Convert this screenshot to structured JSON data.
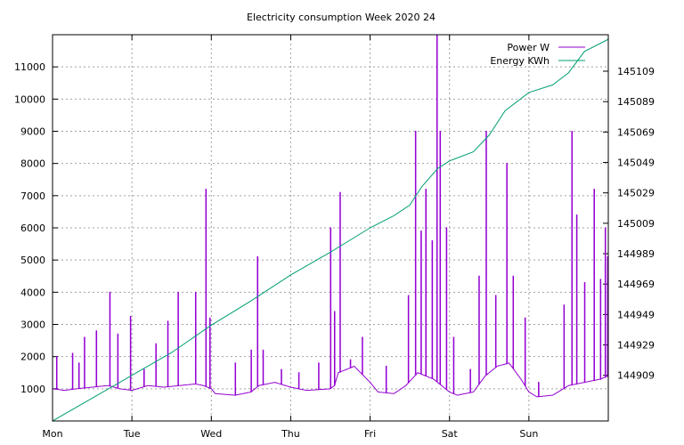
{
  "chart_data": {
    "type": "line",
    "title": "Electricity consumption Week 2020 24",
    "xlabel": "",
    "ylabel": "",
    "x_unit": "day",
    "xlim": [
      0,
      7
    ],
    "x_tick_labels": [
      "Mon",
      "Tue",
      "Wed",
      "Thu",
      "Fri",
      "Sat",
      "Sun"
    ],
    "y_left": {
      "ylim": [
        0,
        12000
      ],
      "ticks": [
        1000,
        2000,
        3000,
        4000,
        5000,
        6000,
        7000,
        8000,
        9000,
        10000,
        11000
      ]
    },
    "y_right": {
      "ylim": [
        144879,
        145133
      ],
      "ticks": [
        144909,
        144929,
        144949,
        144969,
        144989,
        145009,
        145029,
        145049,
        145069,
        145089,
        145109
      ]
    },
    "grid": true,
    "legend_position": "top-right",
    "series": [
      {
        "name": "Power W",
        "axis": "left",
        "color": "#9400d3",
        "base": [
          [
            0,
            1000
          ],
          [
            0.15,
            950
          ],
          [
            0.3,
            1000
          ],
          [
            0.5,
            1050
          ],
          [
            0.7,
            1100
          ],
          [
            0.85,
            1000
          ],
          [
            1.0,
            950
          ],
          [
            1.2,
            1100
          ],
          [
            1.4,
            1050
          ],
          [
            1.6,
            1100
          ],
          [
            1.8,
            1150
          ],
          [
            1.9,
            1100
          ],
          [
            2.0,
            1000
          ],
          [
            2.05,
            850
          ],
          [
            2.3,
            800
          ],
          [
            2.5,
            900
          ],
          [
            2.6,
            1100
          ],
          [
            2.8,
            1200
          ],
          [
            3.0,
            1050
          ],
          [
            3.2,
            950
          ],
          [
            3.5,
            1000
          ],
          [
            3.55,
            1100
          ],
          [
            3.6,
            1500
          ],
          [
            3.8,
            1700
          ],
          [
            4.0,
            1200
          ],
          [
            4.1,
            900
          ],
          [
            4.3,
            850
          ],
          [
            4.45,
            1100
          ],
          [
            4.6,
            1500
          ],
          [
            4.8,
            1300
          ],
          [
            5.0,
            900
          ],
          [
            5.1,
            800
          ],
          [
            5.3,
            900
          ],
          [
            5.45,
            1400
          ],
          [
            5.6,
            1700
          ],
          [
            5.75,
            1800
          ],
          [
            5.9,
            1300
          ],
          [
            6.0,
            900
          ],
          [
            6.1,
            750
          ],
          [
            6.3,
            800
          ],
          [
            6.5,
            1100
          ],
          [
            6.7,
            1200
          ],
          [
            6.9,
            1300
          ],
          [
            7.0,
            1400
          ]
        ],
        "spikes": [
          [
            0.05,
            2000
          ],
          [
            0.25,
            2100
          ],
          [
            0.33,
            1800
          ],
          [
            0.4,
            2600
          ],
          [
            0.55,
            2800
          ],
          [
            0.72,
            4000
          ],
          [
            0.82,
            2700
          ],
          [
            0.98,
            3250
          ],
          [
            1.15,
            1600
          ],
          [
            1.3,
            2400
          ],
          [
            1.45,
            3100
          ],
          [
            1.58,
            4000
          ],
          [
            1.8,
            4000
          ],
          [
            1.93,
            7200
          ],
          [
            1.98,
            3200
          ],
          [
            2.3,
            1800
          ],
          [
            2.5,
            2200
          ],
          [
            2.58,
            5100
          ],
          [
            2.65,
            2200
          ],
          [
            2.88,
            1600
          ],
          [
            3.1,
            1500
          ],
          [
            3.35,
            1800
          ],
          [
            3.5,
            6000
          ],
          [
            3.55,
            3400
          ],
          [
            3.62,
            7100
          ],
          [
            3.75,
            1900
          ],
          [
            3.9,
            2600
          ],
          [
            4.2,
            1700
          ],
          [
            4.48,
            3900
          ],
          [
            4.57,
            9000
          ],
          [
            4.64,
            5900
          ],
          [
            4.7,
            7200
          ],
          [
            4.78,
            5600
          ],
          [
            4.84,
            12000
          ],
          [
            4.88,
            9000
          ],
          [
            4.96,
            6000
          ],
          [
            5.05,
            2600
          ],
          [
            5.26,
            1600
          ],
          [
            5.37,
            4500
          ],
          [
            5.46,
            9000
          ],
          [
            5.58,
            3900
          ],
          [
            5.72,
            8000
          ],
          [
            5.8,
            4500
          ],
          [
            5.95,
            3200
          ],
          [
            6.12,
            1200
          ],
          [
            6.44,
            3600
          ],
          [
            6.54,
            9000
          ],
          [
            6.6,
            6400
          ],
          [
            6.7,
            4300
          ],
          [
            6.82,
            7200
          ],
          [
            6.9,
            4400
          ],
          [
            6.96,
            6000
          ],
          [
            6.99,
            5100
          ]
        ]
      },
      {
        "name": "Energy KWh",
        "axis": "right",
        "color": "#009e73",
        "points": [
          [
            0,
            144879
          ],
          [
            0.5,
            144894
          ],
          [
            1.0,
            144909
          ],
          [
            1.5,
            144924
          ],
          [
            2.0,
            144942
          ],
          [
            2.5,
            144958
          ],
          [
            3.0,
            144975
          ],
          [
            3.5,
            144990
          ],
          [
            4.0,
            145006
          ],
          [
            4.3,
            145014
          ],
          [
            4.5,
            145021
          ],
          [
            4.65,
            145033
          ],
          [
            4.85,
            145045
          ],
          [
            5.0,
            145050
          ],
          [
            5.3,
            145056
          ],
          [
            5.5,
            145067
          ],
          [
            5.7,
            145083
          ],
          [
            6.0,
            145095
          ],
          [
            6.3,
            145100
          ],
          [
            6.5,
            145108
          ],
          [
            6.7,
            145122
          ],
          [
            7.0,
            145130
          ]
        ]
      }
    ]
  }
}
